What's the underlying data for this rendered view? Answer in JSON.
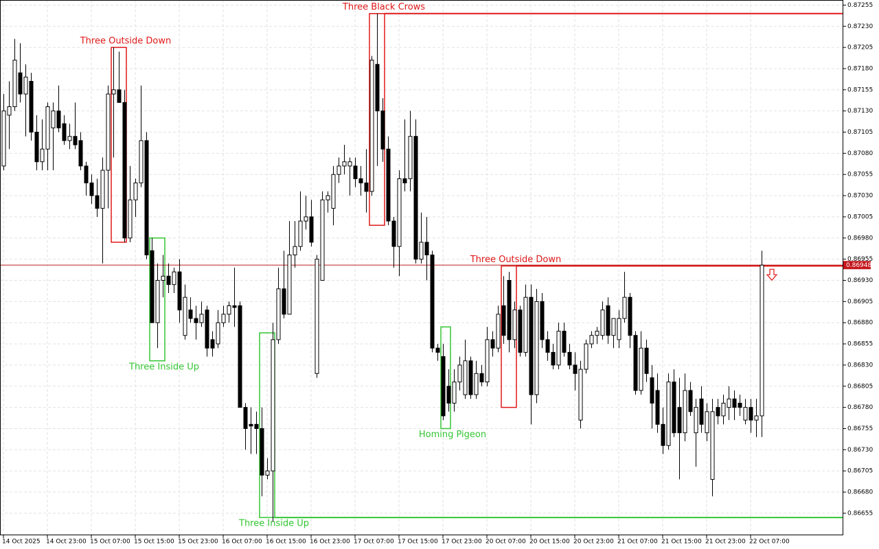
{
  "chart_data": {
    "type": "candlestick",
    "categories": [
      "14 Oct 2025",
      null,
      null,
      null,
      null,
      null,
      null,
      null,
      "14 Oct 23:00",
      null,
      null,
      null,
      null,
      null,
      null,
      null,
      "15 Oct 07:00",
      null,
      null,
      null,
      null,
      null,
      null,
      null,
      "15 Oct 15:00",
      null,
      null,
      null,
      null,
      null,
      null,
      null,
      "15 Oct 23:00",
      null,
      null,
      null,
      null,
      null,
      null,
      null,
      "16 Oct 07:00",
      null,
      null,
      null,
      null,
      null,
      null,
      null,
      "16 Oct 15:00",
      null,
      null,
      null,
      null,
      null,
      null,
      null,
      "16 Oct 23:00",
      null,
      null,
      null,
      null,
      null,
      null,
      null,
      "17 Oct 07:00",
      null,
      null,
      null,
      null,
      null,
      null,
      null,
      "17 Oct 15:00",
      null,
      null,
      null,
      null,
      null,
      null,
      null,
      "17 Oct 23:00",
      null,
      null,
      null,
      null,
      null,
      null,
      null,
      "20 Oct 07:00",
      null,
      null,
      null,
      null,
      null,
      null,
      null,
      "20 Oct 15:00",
      null,
      null,
      null,
      null,
      null,
      null,
      null,
      "20 Oct 23:00",
      null,
      null,
      null,
      null,
      null,
      null,
      null,
      "21 Oct 07:00",
      null,
      null,
      null,
      null,
      null,
      null,
      null,
      "21 Oct 15:00",
      null,
      null,
      null,
      null,
      null,
      null,
      null,
      "21 Oct 23:00",
      null,
      null,
      null,
      null,
      null,
      null,
      null,
      "22 Oct 07:00",
      null,
      null
    ],
    "open": [
      0.87065,
      0.87125,
      0.87135,
      0.87175,
      0.8715,
      0.87165,
      0.87105,
      0.8707,
      0.87085,
      0.8711,
      0.8713,
      0.87115,
      0.87095,
      0.871,
      0.87095,
      0.87065,
      0.87045,
      0.8703,
      0.87015,
      0.8706,
      0.8715,
      0.87155,
      0.8714,
      0.8698,
      0.87025,
      0.87045,
      0.87095,
      0.86965,
      0.8688,
      0.8693,
      0.86935,
      0.86925,
      0.8694,
      0.86865,
      0.86895,
      0.86885,
      0.8688,
      0.86895,
      0.8686,
      0.86855,
      0.8688,
      0.8689,
      0.869,
      0.869,
      0.8678,
      0.8676,
      0.8676,
      0.86755,
      0.867,
      0.86705,
      0.8686,
      0.8692,
      0.8689,
      0.8696,
      0.8697,
      0.87,
      0.87005,
      0.8682,
      0.8693,
      0.87025,
      0.87015,
      0.87055,
      0.87065,
      0.87065,
      0.87065,
      0.8705,
      0.87045,
      0.87035,
      0.87185,
      0.8713,
      0.87085,
      0.87,
      0.8697,
      0.8705,
      0.8705,
      0.871,
      0.86955,
      0.86975,
      0.8696,
      0.8685,
      0.8684,
      0.86805,
      0.86785,
      0.8681,
      0.86795,
      0.86835,
      0.86795,
      0.8682,
      0.8681,
      0.8686,
      0.8685,
      0.869,
      0.8693,
      0.8686,
      0.86895,
      0.86845,
      0.8691,
      0.86795,
      0.86905,
      0.8686,
      0.86845,
      0.8683,
      0.8687,
      0.86845,
      0.8683,
      0.86765,
      0.86825,
      0.86855,
      0.86865,
      0.86865,
      0.869,
      0.86865,
      0.8686,
      0.86885,
      0.8691,
      0.86865,
      0.868,
      0.8685,
      0.86815,
      0.868,
      0.8676,
      0.86735,
      0.8681,
      0.8678,
      0.8675,
      0.868,
      0.8675,
      0.8679,
      0.8675,
      0.86695,
      0.8678,
      0.8677,
      0.8678,
      0.8679,
      0.86785,
      0.86765,
      0.8678,
      0.86765,
      0.8677
    ],
    "high": [
      0.8715,
      0.87165,
      0.87215,
      0.8721,
      0.87185,
      0.87175,
      0.87125,
      0.8712,
      0.8714,
      0.8714,
      0.8716,
      0.87125,
      0.87115,
      0.8714,
      0.87105,
      0.8707,
      0.87055,
      0.8705,
      0.87075,
      0.8716,
      0.87205,
      0.872,
      0.87155,
      0.87065,
      0.8705,
      0.8716,
      0.87105,
      0.8698,
      0.8695,
      0.8696,
      0.8695,
      0.86945,
      0.86955,
      0.86925,
      0.8691,
      0.869,
      0.86905,
      0.869,
      0.8687,
      0.86895,
      0.869,
      0.86905,
      0.86945,
      0.86905,
      0.86785,
      0.8678,
      0.86775,
      0.8678,
      0.8672,
      0.8688,
      0.86945,
      0.86965,
      0.87,
      0.87,
      0.87035,
      0.8703,
      0.87025,
      0.8696,
      0.87035,
      0.87035,
      0.87065,
      0.87075,
      0.8709,
      0.87075,
      0.87075,
      0.87065,
      0.87085,
      0.87195,
      0.87245,
      0.87145,
      0.871,
      0.87005,
      0.8706,
      0.8712,
      0.8713,
      0.8712,
      0.8701,
      0.87005,
      0.86965,
      0.86855,
      0.86855,
      0.86825,
      0.86825,
      0.8684,
      0.8686,
      0.8684,
      0.86835,
      0.8683,
      0.86875,
      0.8687,
      0.869,
      0.86935,
      0.8694,
      0.86905,
      0.869,
      0.86925,
      0.86925,
      0.8692,
      0.86915,
      0.8687,
      0.86855,
      0.8688,
      0.8688,
      0.86855,
      0.86845,
      0.86835,
      0.8686,
      0.8687,
      0.86875,
      0.86905,
      0.8691,
      0.86885,
      0.86895,
      0.8694,
      0.86915,
      0.8687,
      0.8687,
      0.8686,
      0.8683,
      0.8682,
      0.8678,
      0.8682,
      0.86825,
      0.86815,
      0.8682,
      0.8681,
      0.8679,
      0.86805,
      0.86785,
      0.8679,
      0.8679,
      0.86795,
      0.86805,
      0.868,
      0.86795,
      0.8679,
      0.8679,
      0.8679,
      0.86965
    ],
    "low": [
      0.8706,
      0.87085,
      0.8713,
      0.8714,
      0.871,
      0.87095,
      0.8706,
      0.8706,
      0.8706,
      0.8706,
      0.87105,
      0.8709,
      0.87085,
      0.87085,
      0.8706,
      0.8703,
      0.8702,
      0.87005,
      0.8695,
      0.87015,
      0.87075,
      0.8714,
      0.86975,
      0.86975,
      0.87005,
      0.8704,
      0.86955,
      0.8688,
      0.8685,
      0.8691,
      0.86915,
      0.86915,
      0.8688,
      0.8686,
      0.8688,
      0.8686,
      0.86875,
      0.8684,
      0.8684,
      0.8685,
      0.86875,
      0.8688,
      0.86875,
      0.8678,
      0.8673,
      0.86725,
      0.86725,
      0.86675,
      0.86695,
      0.86645,
      0.86855,
      0.86885,
      0.8689,
      0.86945,
      0.86965,
      0.8699,
      0.8697,
      0.86815,
      0.8693,
      0.8701,
      0.86995,
      0.87045,
      0.87055,
      0.8703,
      0.8704,
      0.8703,
      0.8701,
      0.8703,
      0.87065,
      0.8707,
      0.86995,
      0.86945,
      0.86935,
      0.87035,
      0.87035,
      0.8695,
      0.8695,
      0.8693,
      0.86845,
      0.86835,
      0.86765,
      0.86775,
      0.86775,
      0.868,
      0.8679,
      0.8679,
      0.8679,
      0.86805,
      0.86805,
      0.8684,
      0.86845,
      0.86855,
      0.86845,
      0.8685,
      0.8684,
      0.8684,
      0.8676,
      0.86785,
      0.8685,
      0.86835,
      0.86825,
      0.86825,
      0.8684,
      0.86825,
      0.868,
      0.86755,
      0.8682,
      0.8685,
      0.86855,
      0.8686,
      0.86855,
      0.8685,
      0.8685,
      0.8688,
      0.8685,
      0.86795,
      0.86795,
      0.8681,
      0.86755,
      0.8675,
      0.86725,
      0.8673,
      0.86745,
      0.86695,
      0.8674,
      0.8677,
      0.8671,
      0.8675,
      0.8674,
      0.86675,
      0.8676,
      0.8676,
      0.86765,
      0.86765,
      0.8677,
      0.8676,
      0.8675,
      0.86745,
      0.86745
    ],
    "close": [
      0.8713,
      0.87135,
      0.8719,
      0.8715,
      0.8717,
      0.87105,
      0.8707,
      0.87085,
      0.87135,
      0.8713,
      0.8711,
      0.87095,
      0.871,
      0.8709,
      0.87065,
      0.87045,
      0.8703,
      0.87015,
      0.8706,
      0.8715,
      0.87155,
      0.8714,
      0.8698,
      0.87025,
      0.87045,
      0.87095,
      0.8696,
      0.8688,
      0.8693,
      0.86935,
      0.86925,
      0.8694,
      0.86895,
      0.8691,
      0.86885,
      0.8688,
      0.8689,
      0.8685,
      0.8685,
      0.8688,
      0.8689,
      0.869,
      0.86898,
      0.8678,
      0.86755,
      0.86758,
      0.86755,
      0.867,
      0.86705,
      0.8686,
      0.8692,
      0.8689,
      0.8696,
      0.8697,
      0.87,
      0.87005,
      0.86975,
      0.86955,
      0.87025,
      0.8703,
      0.87055,
      0.87065,
      0.8707,
      0.8707,
      0.8705,
      0.87045,
      0.87035,
      0.8719,
      0.8713,
      0.87085,
      0.87,
      0.8697,
      0.8705,
      0.87045,
      0.871,
      0.86955,
      0.86975,
      0.8696,
      0.8685,
      0.86845,
      0.8677,
      0.86785,
      0.8681,
      0.8683,
      0.86835,
      0.86795,
      0.8682,
      0.8681,
      0.8686,
      0.8685,
      0.8689,
      0.86865,
      0.8686,
      0.86895,
      0.86845,
      0.8691,
      0.86795,
      0.86905,
      0.8686,
      0.86845,
      0.8683,
      0.8687,
      0.86845,
      0.8683,
      0.8682,
      0.86825,
      0.86855,
      0.86865,
      0.8687,
      0.86895,
      0.86865,
      0.86885,
      0.86885,
      0.8691,
      0.86865,
      0.868,
      0.8685,
      0.8682,
      0.86785,
      0.8676,
      0.86735,
      0.8681,
      0.8675,
      0.8675,
      0.868,
      0.86775,
      0.8678,
      0.8676,
      0.86775,
      0.86775,
      0.8677,
      0.86785,
      0.8679,
      0.8678,
      0.8678,
      0.8678,
      0.86765,
      0.8677,
      0.86948
    ],
    "ylim": [
      0.86629,
      0.87261
    ],
    "yticks": [
      0.87255,
      {
        "value": 0.8723,
        "label": "0.87230"
      },
      0.87205,
      {
        "value": 0.8718,
        "label": "0.87180"
      },
      0.87155,
      {
        "value": 0.8713,
        "label": "0.87130"
      },
      0.87105,
      {
        "value": 0.8708,
        "label": "0.87080"
      },
      0.87055,
      {
        "value": 0.8703,
        "label": "0.87030"
      },
      0.87005,
      {
        "value": 0.8698,
        "label": "0.86980"
      },
      0.86955,
      {
        "value": 0.8693,
        "label": "0.86930"
      },
      0.86905,
      {
        "value": 0.8688,
        "label": "0.86880"
      },
      0.86855,
      {
        "value": 0.8683,
        "label": "0.86830"
      },
      0.86805,
      {
        "value": 0.8678,
        "label": "0.86780"
      },
      0.86755,
      {
        "value": 0.8673,
        "label": "0.86730"
      },
      0.86705,
      {
        "value": 0.8668,
        "label": "0.86680"
      },
      0.86655
    ],
    "grid": true,
    "current_price": 0.86948,
    "bull_color": "#33c633",
    "bear_color": "#e01818",
    "patterns": [
      {
        "label": "Three Outside Down",
        "color": "#e01818",
        "x": [
          20,
          22
        ],
        "top": 0.87205,
        "bottom": 0.86975
      },
      {
        "label": "Three Inside Up",
        "color": "#33c633",
        "x": [
          27,
          29
        ],
        "top": 0.8698,
        "bottom": 0.86835
      },
      {
        "label": "Three Inside Up",
        "color": "#33c633",
        "x": [
          47,
          49
        ],
        "top": 0.86868,
        "bottom": 0.8665,
        "level": 0.8665
      },
      {
        "label": "Three Black Crows",
        "color": "#e01818",
        "x": [
          67,
          69
        ],
        "top": 0.87245,
        "bottom": 0.86995,
        "level": 0.87245
      },
      {
        "label": "Homing Pigeon",
        "color": "#33c633",
        "x": [
          80,
          81
        ],
        "top": 0.86875,
        "bottom": 0.86755
      },
      {
        "label": "Three Outside Down",
        "color": "#e01818",
        "x": [
          91,
          93
        ],
        "top": 0.86947,
        "bottom": 0.8678,
        "level": 0.86947
      }
    ]
  }
}
